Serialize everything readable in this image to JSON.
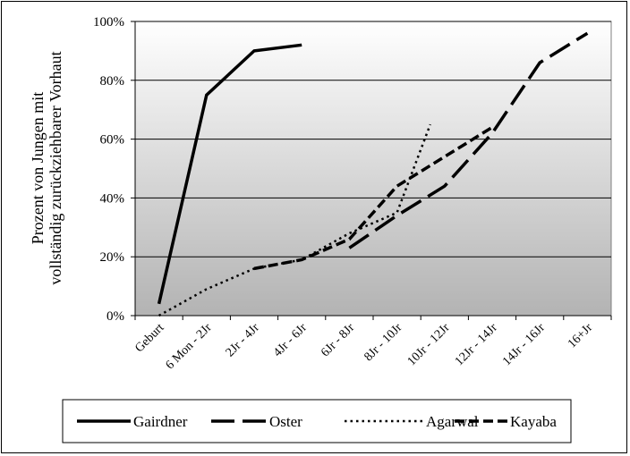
{
  "chart_data": {
    "type": "line",
    "title": "",
    "xlabel": "",
    "ylabel_lines": [
      "Prozent von Jungen mit",
      "vollständig zurückziehbarer Vorhaut"
    ],
    "categories": [
      "Geburt",
      "6 Mon - 2Jr",
      "2Jr - 4Jr",
      "4Jr - 6Jr",
      "6Jr - 8Jr",
      "8Jr - 10Jr",
      "10Jr - 12Jr",
      "12Jr - 14Jr",
      "14Jr - 16Jr",
      "16+Jr"
    ],
    "ylim": [
      0,
      100
    ],
    "yticks": [
      "0%",
      "20%",
      "40%",
      "60%",
      "80%",
      "100%"
    ],
    "grid": true,
    "legend_position": "bottom",
    "series": [
      {
        "name": "Gairdner",
        "style": "solid",
        "points": [
          [
            0.5,
            4
          ],
          [
            1.5,
            75
          ],
          [
            2.5,
            90
          ],
          [
            3.5,
            92
          ]
        ]
      },
      {
        "name": "Oster",
        "style": "long-dash",
        "points": [
          [
            4.5,
            23
          ],
          [
            5.5,
            34
          ],
          [
            6.5,
            44
          ],
          [
            7.5,
            62
          ],
          [
            8.5,
            86
          ],
          [
            9.5,
            96
          ]
        ]
      },
      {
        "name": "Agarwal",
        "style": "dotted",
        "points": [
          [
            0.5,
            0
          ],
          [
            1.5,
            9
          ],
          [
            2.5,
            16
          ],
          [
            3.5,
            19
          ],
          [
            4.5,
            28
          ],
          [
            5.5,
            35
          ],
          [
            6.2,
            65
          ]
        ]
      },
      {
        "name": "Kayaba",
        "style": "short-dash",
        "points": [
          [
            2.5,
            16
          ],
          [
            3.5,
            19
          ],
          [
            4.5,
            26
          ],
          [
            5.5,
            44
          ],
          [
            6.5,
            54
          ],
          [
            7.5,
            64
          ]
        ]
      }
    ]
  }
}
